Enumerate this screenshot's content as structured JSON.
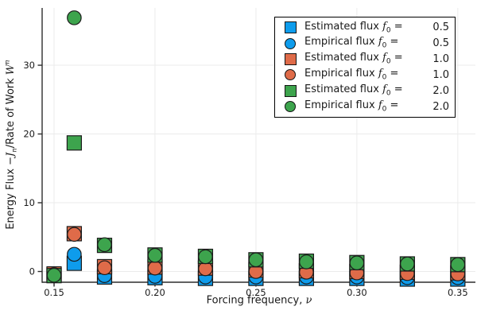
{
  "figure": {
    "background": "#FFFFFF",
    "spine_color": "#2D2D2D",
    "grid_color": "#EBEBEB",
    "text_color": "#1A1A1A",
    "marker_edge_color": "#1C1C1C",
    "series_colors": {
      "blue": "#0E9CEC",
      "orange": "#DF6B49",
      "green": "#3DA44D"
    }
  },
  "axes": {
    "xlabel": {
      "prefix": "Forcing frequency, ",
      "symbol": "ν"
    },
    "ylabel": {
      "pre": "Energy Flux −",
      "j": "J",
      "j_sub": "n",
      "mid": "/Rate of Work ",
      "w": "W",
      "w_sup": "n"
    },
    "xtick_labels": [
      "0.15",
      "0.20",
      "0.25",
      "0.30",
      "0.35"
    ],
    "ytick_labels": [
      "0",
      "10",
      "20",
      "30"
    ]
  },
  "legend": {
    "entries": [
      {
        "prefix": "Estimated flux",
        "symbol": "f",
        "sub": "0",
        "eq": "=",
        "value": "0.5",
        "marker": "square",
        "color": "#0E9CEC"
      },
      {
        "prefix": "Empirical flux",
        "symbol": "f",
        "sub": "0",
        "eq": "=",
        "value": "0.5",
        "marker": "circle",
        "color": "#0E9CEC"
      },
      {
        "prefix": "Estimated flux",
        "symbol": "f",
        "sub": "0",
        "eq": "=",
        "value": "1.0",
        "marker": "square",
        "color": "#DF6B49"
      },
      {
        "prefix": "Empirical flux",
        "symbol": "f",
        "sub": "0",
        "eq": "=",
        "value": "1.0",
        "marker": "circle",
        "color": "#DF6B49"
      },
      {
        "prefix": "Estimated flux",
        "symbol": "f",
        "sub": "0",
        "eq": "=",
        "value": "2.0",
        "marker": "square",
        "color": "#3DA44D"
      },
      {
        "prefix": "Empirical flux",
        "symbol": "f",
        "sub": "0",
        "eq": "=",
        "value": "2.0",
        "marker": "circle",
        "color": "#3DA44D"
      }
    ]
  },
  "chart_data": {
    "type": "scatter",
    "title": "",
    "xlabel": "Forcing frequency, ν",
    "ylabel": "Energy Flux −Jₙ/Rate of Work 𝒲ⁿ",
    "xlim": [
      0.14409,
      0.35872
    ],
    "ylim": [
      -1.56,
      38.33
    ],
    "xticks": [
      0.15,
      0.2,
      0.25,
      0.3,
      0.35
    ],
    "yticks": [
      0,
      10,
      20,
      30
    ],
    "grid": true,
    "legend_position": "top-right",
    "marker_edge": "#1C1C1C",
    "x": [
      0.15,
      0.16,
      0.175,
      0.2,
      0.225,
      0.25,
      0.275,
      0.3,
      0.325,
      0.35
    ],
    "series": [
      {
        "name": "Estimated flux f₀ = 0.5",
        "marker": "square",
        "color": "#0E9CEC",
        "values": [
          -0.5,
          1.2,
          -0.8,
          -0.9,
          -1.0,
          -1.0,
          -1.0,
          -1.0,
          -1.1,
          -1.1
        ]
      },
      {
        "name": "Empirical flux f₀ = 0.5",
        "marker": "circle",
        "color": "#0E9CEC",
        "values": [
          -0.5,
          2.5,
          -0.6,
          -0.7,
          -0.8,
          -0.8,
          -0.8,
          -0.8,
          -0.9,
          -0.9
        ]
      },
      {
        "name": "Estimated flux f₀ = 1.0",
        "marker": "square",
        "color": "#DF6B49",
        "values": [
          -0.35,
          5.5,
          0.7,
          0.65,
          0.5,
          0.2,
          0.1,
          0.0,
          -0.1,
          -0.2
        ]
      },
      {
        "name": "Empirical flux f₀ = 1.0",
        "marker": "circle",
        "color": "#DF6B49",
        "values": [
          -0.45,
          5.4,
          0.55,
          0.5,
          0.4,
          0.0,
          -0.1,
          -0.2,
          -0.3,
          -0.35
        ]
      },
      {
        "name": "Estimated flux f₀ = 2.0",
        "marker": "square",
        "color": "#3DA44D",
        "values": [
          -0.6,
          18.7,
          3.8,
          2.4,
          2.2,
          1.7,
          1.5,
          1.3,
          1.1,
          1.0
        ]
      },
      {
        "name": "Empirical flux f₀ = 2.0",
        "marker": "circle",
        "color": "#3DA44D",
        "values": [
          -0.55,
          36.9,
          3.9,
          2.35,
          2.15,
          1.7,
          1.4,
          1.25,
          1.1,
          1.0
        ]
      }
    ]
  }
}
